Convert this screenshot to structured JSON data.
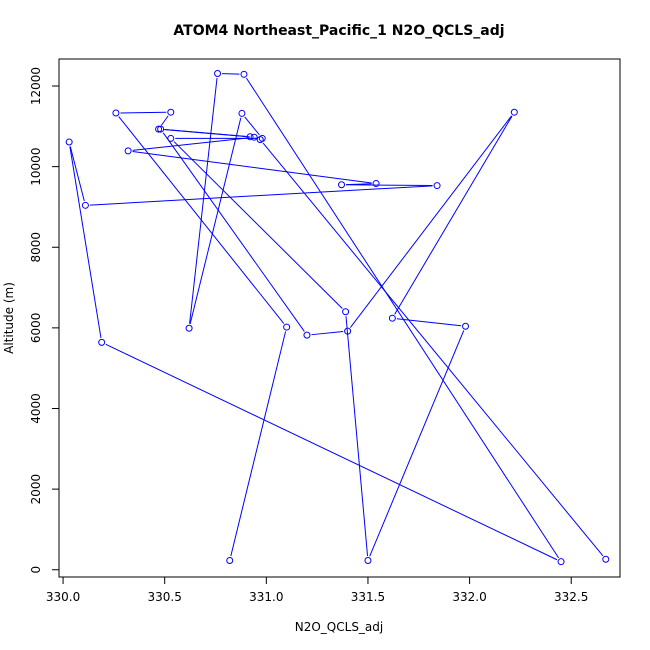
{
  "chart_data": {
    "type": "line",
    "title": "ATOM4 Northeast_Pacific_1 N2O_QCLS_adj",
    "xlabel": "N2O_QCLS_adj",
    "ylabel": "Altitude (m)",
    "xlim": [
      329.98,
      332.74
    ],
    "ylim": [
      -180,
      12670
    ],
    "xticks": [
      330.0,
      330.5,
      331.0,
      331.5,
      332.0,
      332.5
    ],
    "xtick_labels": [
      "330.0",
      "330.5",
      "331.0",
      "331.5",
      "332.0",
      "332.5"
    ],
    "yticks": [
      0,
      2000,
      4000,
      6000,
      8000,
      10000,
      12000
    ],
    "ytick_labels": [
      "0",
      "2000",
      "4000",
      "6000",
      "8000",
      "10000",
      "12000"
    ],
    "grid": false,
    "line_color": "#0000ff",
    "marker": "open-circle",
    "series": [
      {
        "x": [
          330.82,
          331.1,
          330.26,
          330.53,
          330.47,
          330.94,
          330.32,
          331.54,
          331.37,
          331.84,
          330.11,
          330.03,
          330.19,
          332.45,
          330.89,
          330.76,
          330.62,
          330.88,
          330.98,
          330.53,
          331.39,
          331.5,
          331.98,
          331.62,
          332.22,
          331.4,
          331.2,
          330.48,
          330.92,
          330.97,
          332.67
        ],
        "y": [
          230,
          6020,
          11330,
          11350,
          10930,
          10730,
          10390,
          9580,
          9550,
          9530,
          9040,
          10610,
          5640,
          200,
          12290,
          12310,
          5990,
          11320,
          10700,
          10700,
          6400,
          230,
          6040,
          6240,
          11350,
          5920,
          5820,
          10930,
          10740,
          10670,
          260
        ]
      }
    ]
  }
}
